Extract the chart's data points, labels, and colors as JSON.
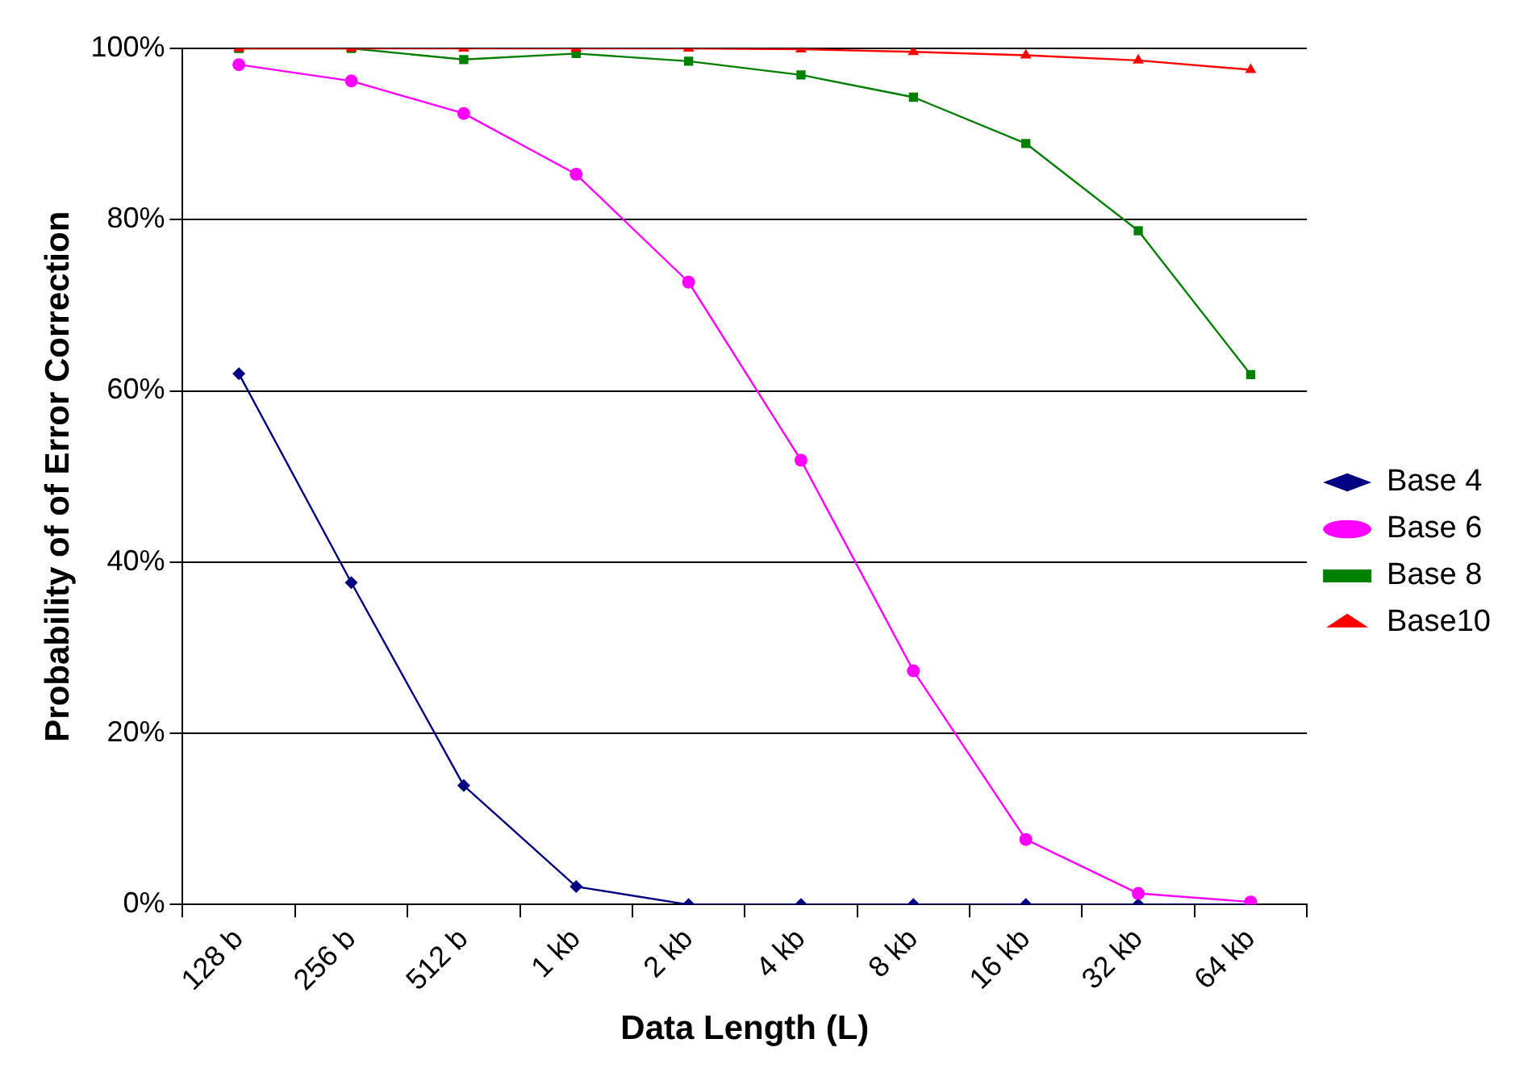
{
  "chart_data": {
    "type": "line",
    "xlabel": "Data Length (L)",
    "ylabel": "Probability of of Error Correction",
    "categories": [
      "128 b",
      "256 b",
      "512 b",
      "1 kb",
      "2 kb",
      "4 kb",
      "8 kb",
      "16 kb",
      "32 kb",
      "64 kb"
    ],
    "series": [
      {
        "name": "Base 4",
        "color": "#000080",
        "marker": "diamond",
        "values": [
          62,
          37.6,
          13.9,
          2.1,
          0,
          0,
          0,
          0,
          0,
          0
        ]
      },
      {
        "name": "Base 6",
        "color": "#ff00ff",
        "marker": "circle",
        "values": [
          98.1,
          96.2,
          92.4,
          85.3,
          72.7,
          51.9,
          27.3,
          7.6,
          1.3,
          0.3
        ]
      },
      {
        "name": "Base 8",
        "color": "#008000",
        "marker": "square",
        "values": [
          100,
          100,
          98.7,
          99.4,
          98.5,
          96.9,
          94.3,
          88.9,
          78.7,
          61.9
        ]
      },
      {
        "name": "Base10",
        "color": "#ff0000",
        "marker": "triangle",
        "values": [
          100,
          100,
          100,
          100,
          100,
          99.9,
          99.6,
          99.2,
          98.6,
          97.5
        ]
      }
    ],
    "ylim": [
      0,
      100
    ],
    "yticks": [
      {
        "value": 0,
        "label": "0%"
      },
      {
        "value": 20,
        "label": "20%"
      },
      {
        "value": 40,
        "label": "40%"
      },
      {
        "value": 60,
        "label": "60%"
      },
      {
        "value": 80,
        "label": "80%"
      },
      {
        "value": 100,
        "label": "100%"
      }
    ],
    "grid": "y",
    "legend": "right",
    "line_style": "solid"
  }
}
